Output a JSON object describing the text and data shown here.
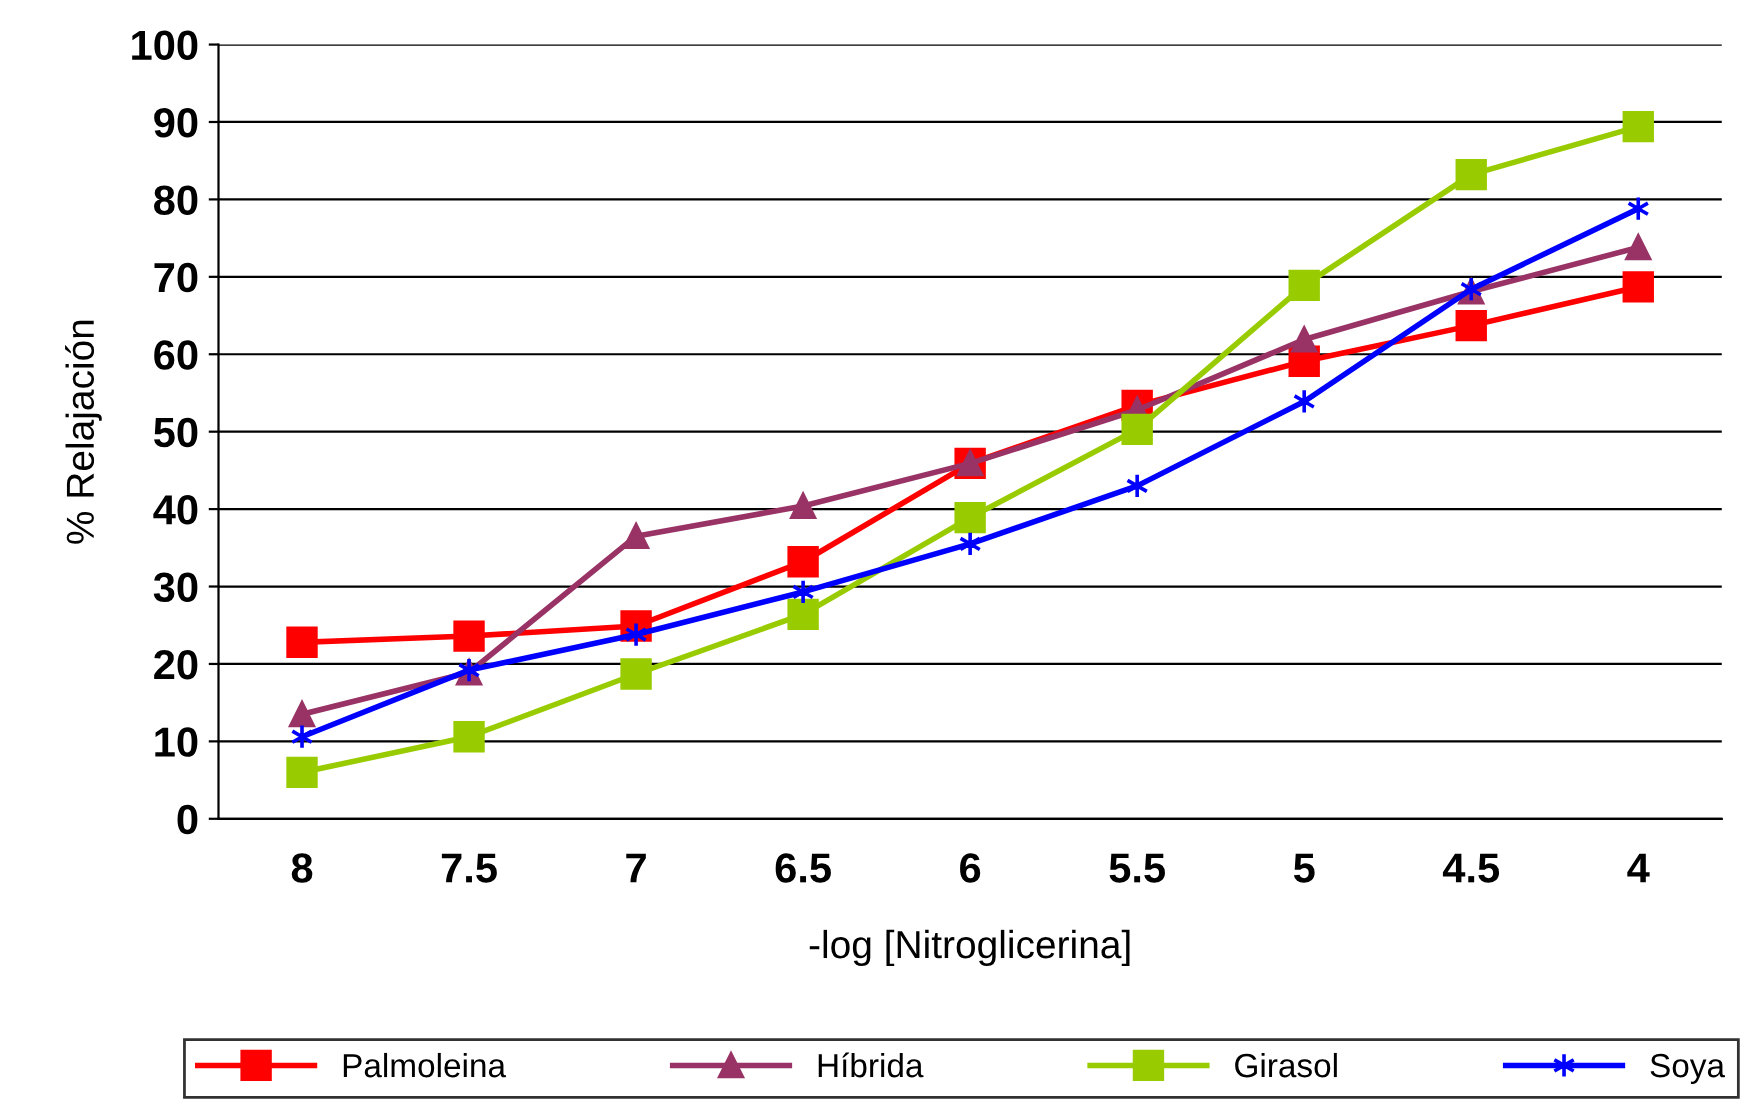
{
  "chart_data": {
    "type": "line",
    "xlabel": "-log [Nitroglicerina]",
    "ylabel": "% Relajación",
    "categories": [
      "8",
      "7.5",
      "7",
      "6.5",
      "6",
      "5.5",
      "5",
      "4.5",
      "4"
    ],
    "series": [
      {
        "name": "Palmoleina",
        "color": "#ff0000",
        "marker": "square",
        "values": [
          22.8,
          23.6,
          24.9,
          33.2,
          45.9,
          53.4,
          59.1,
          63.7,
          68.7
        ]
      },
      {
        "name": "Híbrida",
        "color": "#993366",
        "marker": "triangle",
        "values": [
          13.5,
          18.9,
          36.5,
          40.4,
          45.9,
          52.8,
          61.9,
          68.1,
          73.8
        ]
      },
      {
        "name": "Girasol",
        "color": "#99cc00",
        "marker": "square",
        "values": [
          6.0,
          10.6,
          18.7,
          26.4,
          38.9,
          50.3,
          68.9,
          83.2,
          89.4
        ]
      },
      {
        "name": "Soya",
        "color": "#0000ff",
        "marker": "cross",
        "values": [
          10.6,
          19.2,
          23.8,
          29.3,
          35.5,
          43.0,
          53.9,
          68.4,
          78.8
        ]
      }
    ],
    "ylim": [
      0,
      100
    ],
    "yticks": [
      0,
      10,
      20,
      30,
      40,
      50,
      60,
      70,
      80,
      90,
      100
    ],
    "grid": "y",
    "legend": "bottom",
    "line_style": "solid"
  }
}
